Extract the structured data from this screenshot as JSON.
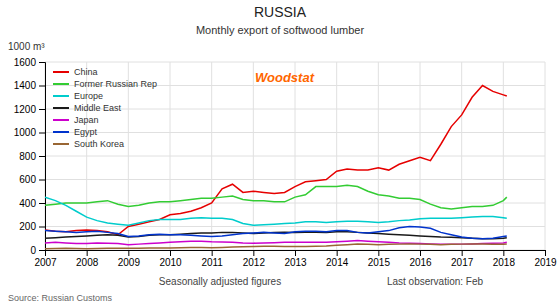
{
  "chart_data": {
    "type": "line",
    "title": "RUSSIA",
    "subtitle": "Monthly export of softwood lumber",
    "ylabel": "1000 m³",
    "annotations": [
      {
        "text": "Seasonally adjusted figures"
      },
      {
        "text": "Last observation: Feb"
      },
      {
        "text": "Source: Russian Customs"
      },
      {
        "text": "Woodstat",
        "color": "#FF6600"
      }
    ],
    "xlim": [
      2007.0,
      2019.0
    ],
    "xticks": [
      2007,
      2008,
      2009,
      2010,
      2011,
      2012,
      2013,
      2014,
      2015,
      2016,
      2017,
      2018,
      2019
    ],
    "ylim": [
      0,
      1600
    ],
    "yticks": [
      0,
      200,
      400,
      600,
      800,
      1000,
      1200,
      1400,
      1600
    ],
    "grid": true,
    "legend": "upper left",
    "x": [
      2007.0,
      2007.25,
      2007.5,
      2007.75,
      2008.0,
      2008.25,
      2008.5,
      2008.75,
      2009.0,
      2009.25,
      2009.5,
      2009.75,
      2010.0,
      2010.25,
      2010.5,
      2010.75,
      2011.0,
      2011.25,
      2011.5,
      2011.75,
      2012.0,
      2012.25,
      2012.5,
      2012.75,
      2013.0,
      2013.25,
      2013.5,
      2013.75,
      2014.0,
      2014.25,
      2014.5,
      2014.75,
      2015.0,
      2015.25,
      2015.5,
      2015.75,
      2016.0,
      2016.25,
      2016.5,
      2016.75,
      2017.0,
      2017.25,
      2017.5,
      2017.75,
      2018.0,
      2018.083
    ],
    "series": [
      {
        "name": "China",
        "color": "#e60000",
        "values": [
          170,
          160,
          155,
          165,
          170,
          165,
          155,
          130,
          200,
          220,
          240,
          260,
          300,
          310,
          330,
          360,
          400,
          520,
          560,
          490,
          500,
          490,
          480,
          490,
          540,
          580,
          590,
          600,
          670,
          690,
          680,
          680,
          700,
          680,
          730,
          760,
          790,
          760,
          900,
          1050,
          1150,
          1300,
          1400,
          1350,
          1320,
          1310
        ]
      },
      {
        "name": "Former Russian Rep",
        "color": "#33cc33",
        "values": [
          380,
          390,
          400,
          400,
          400,
          410,
          420,
          390,
          370,
          380,
          400,
          410,
          410,
          420,
          430,
          440,
          440,
          450,
          460,
          430,
          420,
          420,
          410,
          410,
          450,
          470,
          540,
          540,
          540,
          550,
          540,
          500,
          470,
          460,
          440,
          440,
          430,
          390,
          360,
          350,
          360,
          370,
          370,
          380,
          420,
          450
        ]
      },
      {
        "name": "Europe",
        "color": "#00cccc",
        "values": [
          450,
          420,
          380,
          330,
          280,
          250,
          230,
          220,
          210,
          230,
          250,
          260,
          260,
          260,
          270,
          275,
          270,
          270,
          260,
          225,
          210,
          215,
          220,
          225,
          230,
          240,
          240,
          235,
          240,
          245,
          245,
          240,
          235,
          240,
          250,
          255,
          265,
          270,
          270,
          270,
          275,
          280,
          285,
          285,
          275,
          270
        ]
      },
      {
        "name": "Middle East",
        "color": "#1a1a1a",
        "values": [
          100,
          105,
          110,
          115,
          120,
          125,
          130,
          125,
          110,
          115,
          125,
          130,
          130,
          135,
          140,
          145,
          145,
          150,
          150,
          145,
          140,
          145,
          148,
          150,
          148,
          150,
          152,
          150,
          155,
          155,
          150,
          145,
          140,
          135,
          130,
          125,
          120,
          115,
          110,
          108,
          105,
          100,
          95,
          95,
          100,
          105
        ]
      },
      {
        "name": "Japan",
        "color": "#cc00cc",
        "values": [
          60,
          65,
          60,
          55,
          55,
          60,
          58,
          55,
          45,
          50,
          55,
          60,
          65,
          70,
          75,
          75,
          70,
          68,
          65,
          60,
          58,
          60,
          62,
          65,
          65,
          65,
          65,
          65,
          70,
          75,
          80,
          75,
          70,
          65,
          60,
          58,
          55,
          52,
          50,
          48,
          50,
          52,
          55,
          58,
          60,
          65
        ]
      },
      {
        "name": "Egypt",
        "color": "#0033cc",
        "values": [
          165,
          160,
          155,
          150,
          155,
          160,
          150,
          140,
          115,
          120,
          130,
          135,
          130,
          130,
          125,
          120,
          115,
          120,
          130,
          140,
          145,
          150,
          145,
          140,
          155,
          160,
          160,
          155,
          165,
          165,
          150,
          145,
          155,
          165,
          190,
          200,
          195,
          185,
          150,
          130,
          110,
          100,
          95,
          100,
          115,
          120
        ]
      },
      {
        "name": "South Korea",
        "color": "#996633",
        "values": [
          10,
          12,
          14,
          12,
          10,
          12,
          15,
          15,
          14,
          15,
          16,
          18,
          18,
          20,
          22,
          22,
          20,
          22,
          25,
          28,
          30,
          32,
          32,
          30,
          30,
          30,
          32,
          34,
          40,
          45,
          50,
          48,
          45,
          48,
          50,
          52,
          50,
          48,
          45,
          48,
          50,
          52,
          52,
          50,
          50,
          52
        ]
      }
    ]
  }
}
